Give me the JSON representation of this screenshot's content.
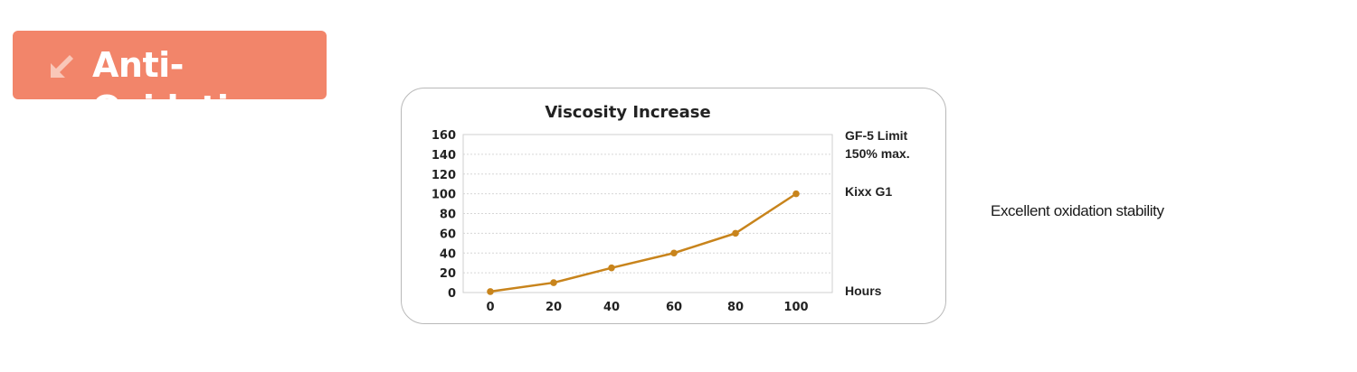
{
  "header": {
    "icon": "arrow-down-left-icon",
    "title": "Anti-Oxidation"
  },
  "caption": "Excellent oxidation stability",
  "colors": {
    "badge": "#f2856a",
    "series": "#c8841c",
    "grid": "#d6d6d6"
  },
  "chart_data": {
    "type": "line",
    "title": "Viscosity Increase",
    "x": [
      0,
      20,
      40,
      60,
      80,
      100
    ],
    "x_tick_labels": [
      "0",
      "20",
      "40",
      "60",
      "80",
      "100"
    ],
    "y_tick_labels": [
      "0",
      "20",
      "40",
      "60",
      "80",
      "100",
      "120",
      "140",
      "160"
    ],
    "ylim": [
      0,
      160
    ],
    "grid": true,
    "series": [
      {
        "name": "",
        "values": [
          1,
          10,
          25,
          40,
          60,
          100
        ]
      }
    ],
    "annotations": {
      "limit_line1": "GF-5 Limit",
      "limit_line2": "150% max.",
      "series_label": "Kixx G1",
      "x_unit": "Hours"
    }
  }
}
